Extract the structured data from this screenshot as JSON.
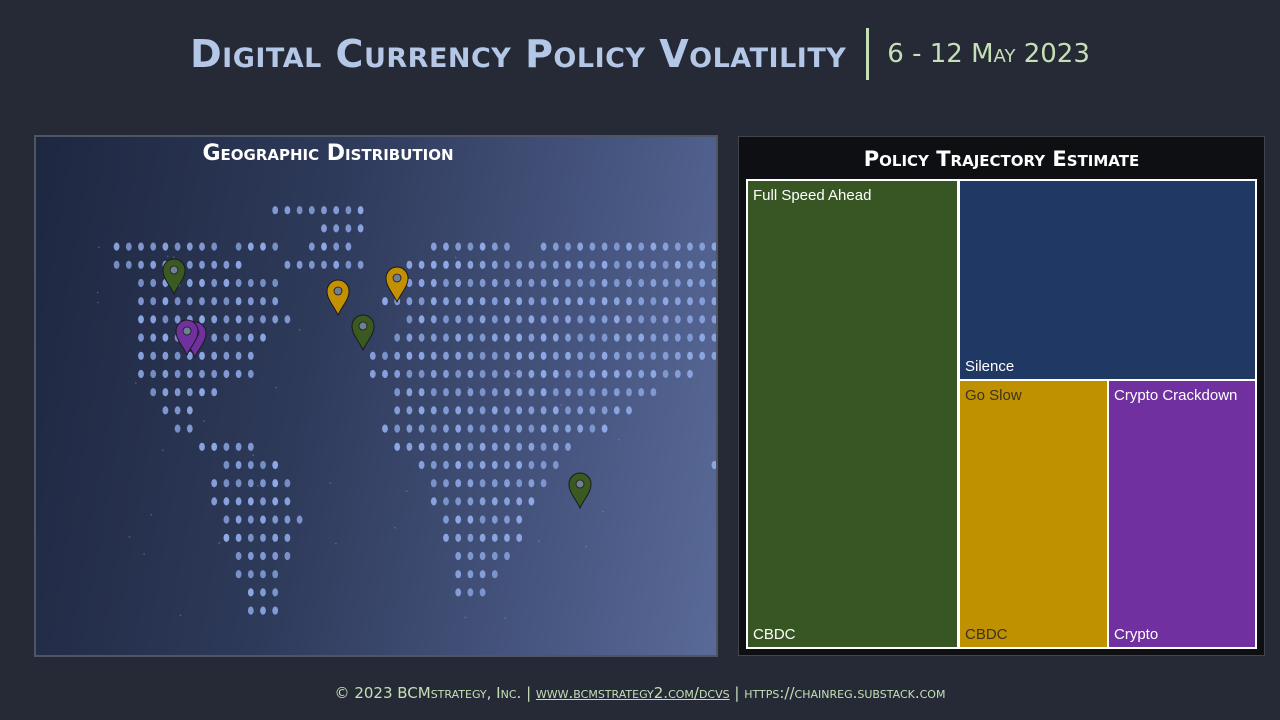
{
  "header": {
    "title": "Digital Currency Policy Volatility",
    "date": "6 - 12 May  2023"
  },
  "map": {
    "title": "Geographic Distribution",
    "pin_colors": {
      "full_speed_ahead": "#3a5a22",
      "go_slow": "#c29000",
      "crypto_crackdown": "#7030a0"
    }
  },
  "chart_data": {
    "type": "treemap",
    "title": "Policy Trajectory Estimate",
    "cells": [
      {
        "label": "Full Speed Ahead",
        "parent": "CBDC",
        "color": "#375623"
      },
      {
        "label": "Silence",
        "parent": "",
        "color": "#1f3864"
      },
      {
        "label": "Go Slow",
        "parent": "CBDC",
        "color": "#bf9000"
      },
      {
        "label": "Crypto Crackdown",
        "parent": "Crypto",
        "color": "#7030a0"
      }
    ]
  },
  "footer": {
    "copyright": "© 2023 BCMstrategy, Inc.",
    "sep1": "|",
    "link1": "www.bcmstrategy2.com/dcvs",
    "sep2": "|",
    "link2": "https://chainreg.substack.com"
  }
}
